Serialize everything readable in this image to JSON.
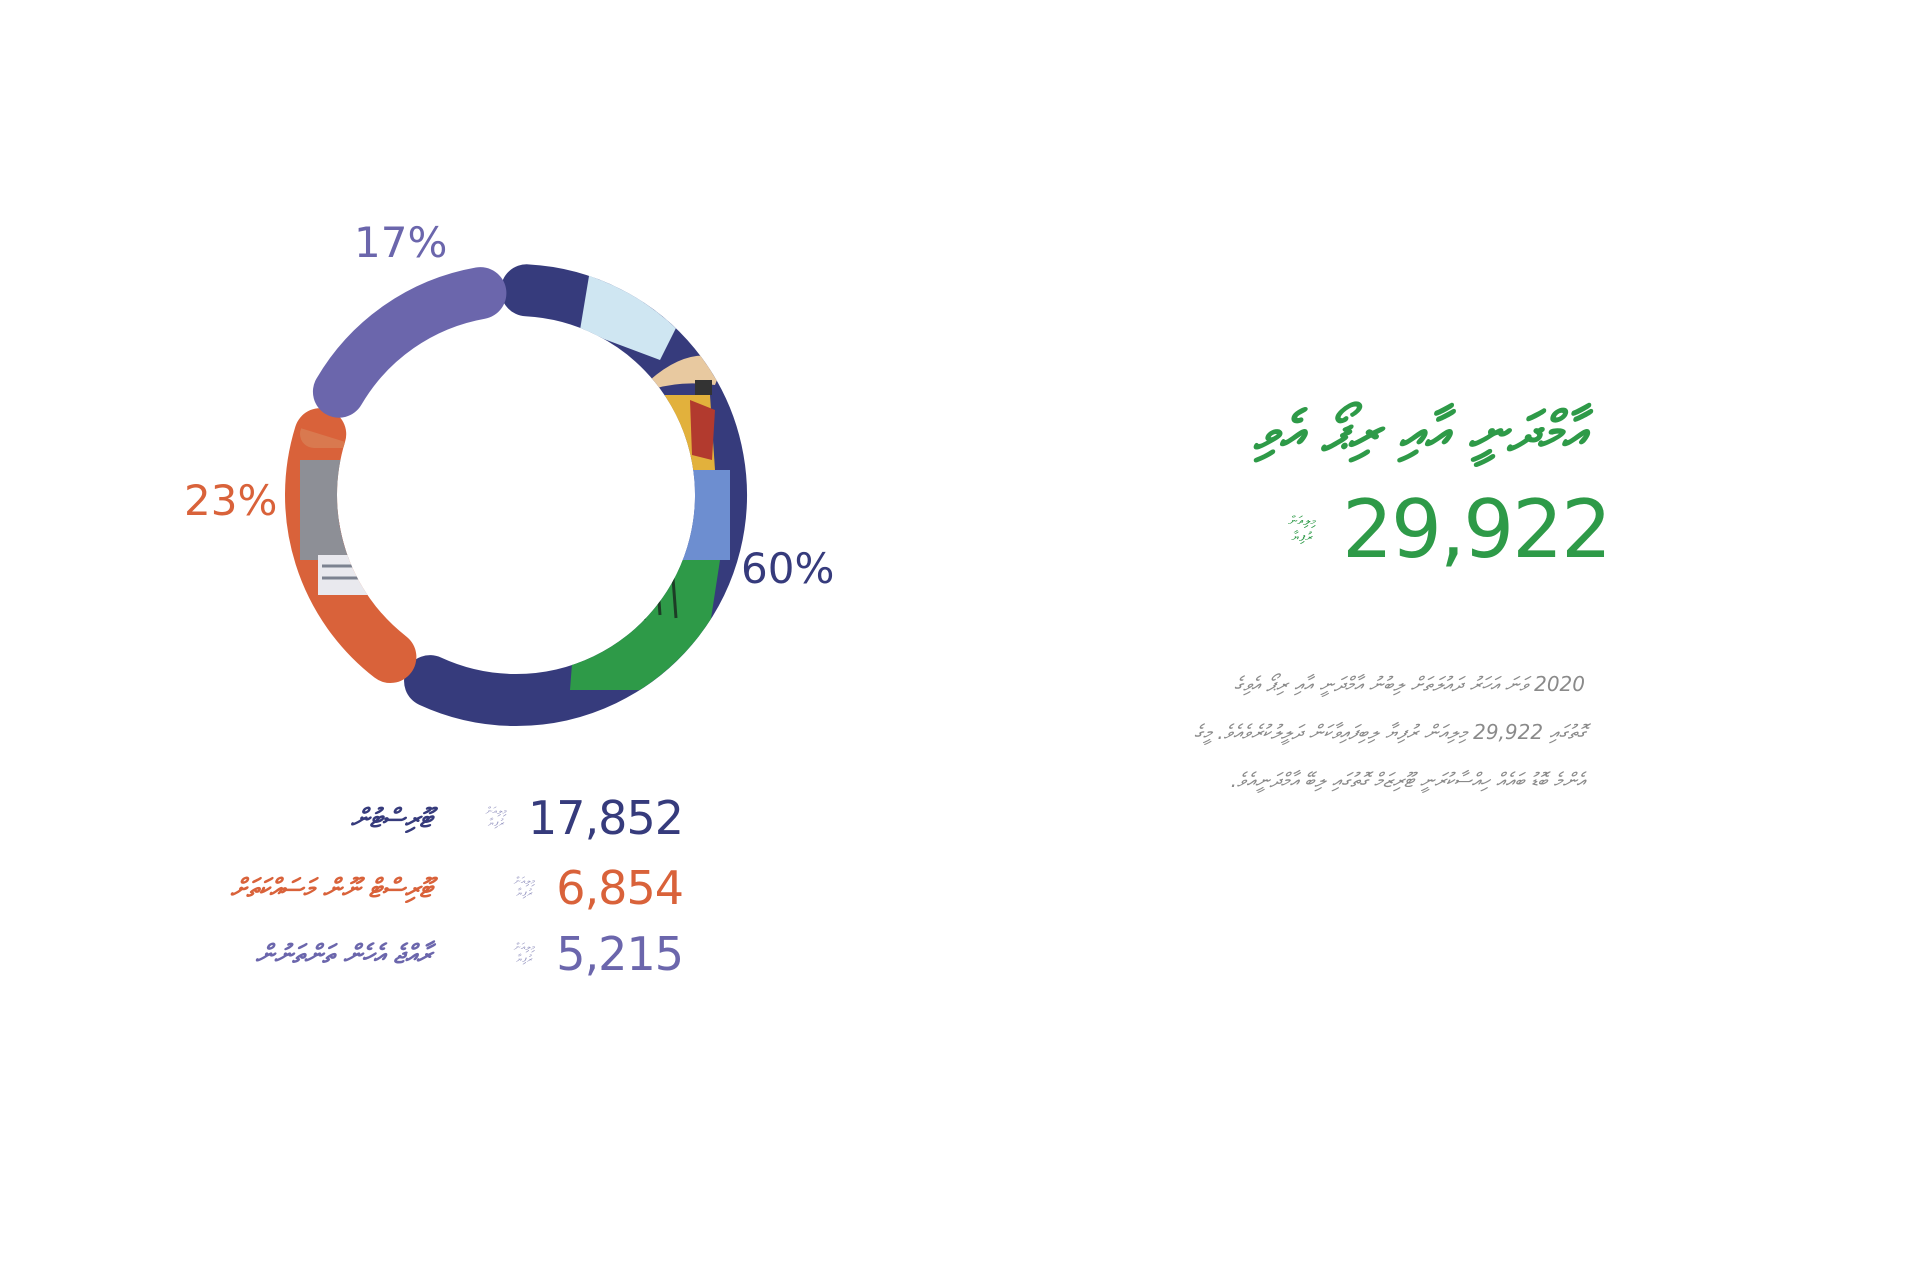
{
  "chart_data": {
    "type": "pie",
    "categories": [
      "ޓޫރިސްޓުން",
      "ޓޫރިސްޓް ނޫން މަސައްކަތަށް",
      "ރާއްޖެ އެހެން ތަންތަނުން"
    ],
    "values": [
      17852,
      6854,
      5215
    ],
    "percent_labels": [
      "60%",
      "23%",
      "17%"
    ],
    "unit_label": "މިލިއަން ރުފިޔާ",
    "colors": [
      "#363b7c",
      "#d9623a",
      "#6b66ac"
    ]
  },
  "headline": "އާމްދަނީ އާއި ރިޕޯ އެވި",
  "total": {
    "value": "29,922",
    "unit": "މިލިއަން ރުފިޔާ"
  },
  "body_text": "2020 ވަނަ އަހަރު ދައުލަތަށް ލިބުނު އާމްދަނީ އާއި ރިޕޯ އެވިގެ\nގޮތުގައި 29,922 މިލިއަން ރުފިޔާ ލިބިފައިވާކަން ދަލީލުކުރެވެއެވެ. މީގެ\nއެންމެ ބޮޑު ބައެއް ހިއްސާކުރަނީ ޓޫރިޒަމް ގޮތުގައި ލިބޭ އާމްދަނީއެވެ."
}
